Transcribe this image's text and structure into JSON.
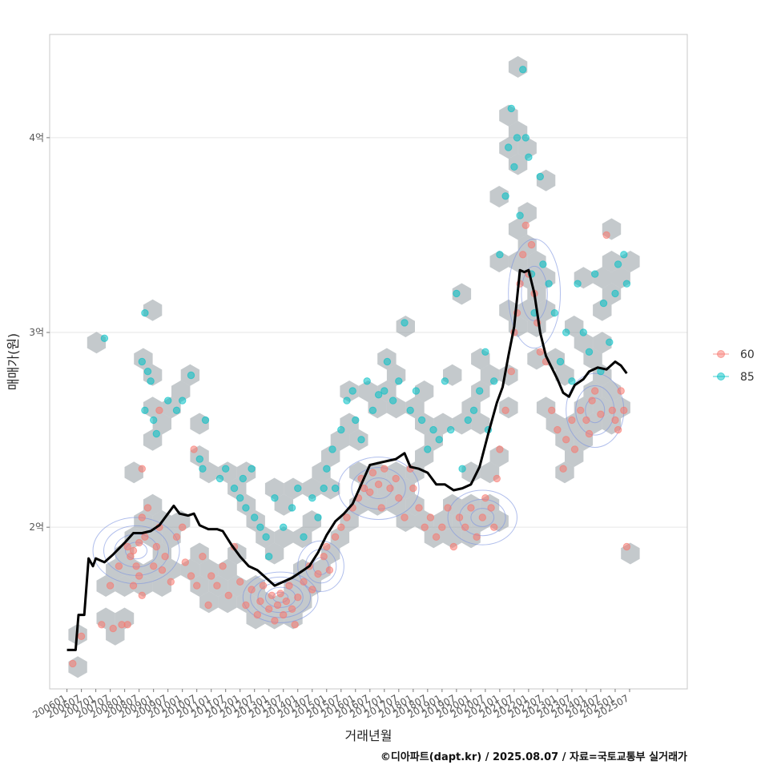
{
  "caption": "©디아파트(dapt.kr) / 2025.08.07 / 자료=국토교통부 실거래가",
  "chart_data": {
    "type": "scatter",
    "xlabel": "거래년월",
    "ylabel": "매매가(원)",
    "x_ticks": [
      "200601",
      "200607",
      "200701",
      "200707",
      "200801",
      "200807",
      "200901",
      "200907",
      "201001",
      "201007",
      "201101",
      "201107",
      "201201",
      "201207",
      "201301",
      "201307",
      "201401",
      "201407",
      "201501",
      "201507",
      "201601",
      "201607",
      "201701",
      "201707",
      "201801",
      "201807",
      "201901",
      "201907",
      "202001",
      "202007",
      "202101",
      "202107",
      "202201",
      "202207",
      "202301",
      "202307",
      "202401",
      "202407",
      "202501",
      "202507"
    ],
    "xlim": [
      2005.4,
      2027.5
    ],
    "y_ticks": [
      {
        "value": 2.0,
        "label": "2억"
      },
      {
        "value": 3.0,
        "label": "3억"
      },
      {
        "value": 4.0,
        "label": "4억"
      }
    ],
    "ylim": [
      1.17,
      4.53
    ],
    "grid": true,
    "legend_position": "right",
    "legend": [
      {
        "name": "60",
        "color": "#F8766D"
      },
      {
        "name": "85",
        "color": "#00BFC4"
      }
    ],
    "hexbin_color": "#8a9399",
    "contour_color": "#7b93e0",
    "trend_color": "#000000",
    "trend_line": [
      [
        2006.0,
        1.37
      ],
      [
        2006.3,
        1.37
      ],
      [
        2006.4,
        1.55
      ],
      [
        2006.6,
        1.55
      ],
      [
        2006.75,
        1.84
      ],
      [
        2006.9,
        1.8
      ],
      [
        2007.0,
        1.84
      ],
      [
        2007.3,
        1.82
      ],
      [
        2007.6,
        1.86
      ],
      [
        2008.0,
        1.92
      ],
      [
        2008.3,
        1.97
      ],
      [
        2008.6,
        1.97
      ],
      [
        2008.9,
        1.98
      ],
      [
        2009.2,
        2.01
      ],
      [
        2009.5,
        2.07
      ],
      [
        2009.7,
        2.11
      ],
      [
        2009.9,
        2.07
      ],
      [
        2010.2,
        2.06
      ],
      [
        2010.4,
        2.07
      ],
      [
        2010.6,
        2.01
      ],
      [
        2010.9,
        1.99
      ],
      [
        2011.2,
        1.99
      ],
      [
        2011.4,
        1.98
      ],
      [
        2011.7,
        1.91
      ],
      [
        2012.0,
        1.85
      ],
      [
        2012.3,
        1.8
      ],
      [
        2012.6,
        1.78
      ],
      [
        2012.9,
        1.74
      ],
      [
        2013.2,
        1.7
      ],
      [
        2013.5,
        1.72
      ],
      [
        2013.8,
        1.74
      ],
      [
        2014.1,
        1.77
      ],
      [
        2014.4,
        1.8
      ],
      [
        2014.7,
        1.87
      ],
      [
        2015.0,
        1.96
      ],
      [
        2015.3,
        2.03
      ],
      [
        2015.6,
        2.07
      ],
      [
        2015.9,
        2.12
      ],
      [
        2016.2,
        2.22
      ],
      [
        2016.5,
        2.32
      ],
      [
        2016.8,
        2.33
      ],
      [
        2017.1,
        2.34
      ],
      [
        2017.4,
        2.35
      ],
      [
        2017.7,
        2.38
      ],
      [
        2017.9,
        2.31
      ],
      [
        2018.2,
        2.3
      ],
      [
        2018.5,
        2.28
      ],
      [
        2018.8,
        2.22
      ],
      [
        2019.1,
        2.22
      ],
      [
        2019.4,
        2.19
      ],
      [
        2019.7,
        2.2
      ],
      [
        2020.0,
        2.22
      ],
      [
        2020.3,
        2.31
      ],
      [
        2020.6,
        2.48
      ],
      [
        2020.9,
        2.64
      ],
      [
        2021.1,
        2.72
      ],
      [
        2021.3,
        2.88
      ],
      [
        2021.5,
        3.03
      ],
      [
        2021.7,
        3.32
      ],
      [
        2021.85,
        3.31
      ],
      [
        2022.0,
        3.32
      ],
      [
        2022.2,
        3.2
      ],
      [
        2022.4,
        3.0
      ],
      [
        2022.6,
        2.88
      ],
      [
        2022.8,
        2.82
      ],
      [
        2023.0,
        2.76
      ],
      [
        2023.2,
        2.69
      ],
      [
        2023.4,
        2.67
      ],
      [
        2023.6,
        2.73
      ],
      [
        2023.9,
        2.76
      ],
      [
        2024.1,
        2.8
      ],
      [
        2024.4,
        2.82
      ],
      [
        2024.7,
        2.81
      ],
      [
        2025.0,
        2.85
      ],
      [
        2025.2,
        2.83
      ],
      [
        2025.4,
        2.79
      ]
    ],
    "series": [
      {
        "name": "60",
        "points": [
          [
            2006.2,
            1.3
          ],
          [
            2006.5,
            1.44
          ],
          [
            2007.2,
            1.5
          ],
          [
            2007.6,
            1.48
          ],
          [
            2007.9,
            1.5
          ],
          [
            2008.1,
            1.5
          ],
          [
            2007.5,
            1.7
          ],
          [
            2007.8,
            1.8
          ],
          [
            2008.1,
            1.9
          ],
          [
            2008.2,
            1.85
          ],
          [
            2008.3,
            1.88
          ],
          [
            2008.4,
            1.8
          ],
          [
            2008.5,
            1.92
          ],
          [
            2008.6,
            2.05
          ],
          [
            2008.7,
            1.95
          ],
          [
            2008.8,
            2.1
          ],
          [
            2008.5,
            1.75
          ],
          [
            2008.3,
            1.7
          ],
          [
            2008.6,
            1.65
          ],
          [
            2009.0,
            1.8
          ],
          [
            2009.1,
            1.9
          ],
          [
            2009.2,
            2.0
          ],
          [
            2009.3,
            1.78
          ],
          [
            2009.4,
            1.85
          ],
          [
            2009.6,
            1.72
          ],
          [
            2009.8,
            1.95
          ],
          [
            2010.0,
            2.0
          ],
          [
            2010.1,
            1.82
          ],
          [
            2010.3,
            1.75
          ],
          [
            2010.5,
            1.7
          ],
          [
            2010.7,
            1.85
          ],
          [
            2010.9,
            1.6
          ],
          [
            2011.0,
            1.75
          ],
          [
            2011.2,
            1.7
          ],
          [
            2011.4,
            1.8
          ],
          [
            2011.6,
            1.65
          ],
          [
            2011.8,
            1.9
          ],
          [
            2012.0,
            1.72
          ],
          [
            2012.2,
            1.6
          ],
          [
            2012.4,
            1.68
          ],
          [
            2012.6,
            1.55
          ],
          [
            2012.7,
            1.62
          ],
          [
            2012.8,
            1.7
          ],
          [
            2013.0,
            1.58
          ],
          [
            2013.1,
            1.65
          ],
          [
            2013.2,
            1.52
          ],
          [
            2013.3,
            1.6
          ],
          [
            2013.4,
            1.66
          ],
          [
            2013.5,
            1.55
          ],
          [
            2013.6,
            1.62
          ],
          [
            2013.7,
            1.7
          ],
          [
            2013.8,
            1.58
          ],
          [
            2013.9,
            1.5
          ],
          [
            2014.0,
            1.64
          ],
          [
            2014.2,
            1.72
          ],
          [
            2014.4,
            1.8
          ],
          [
            2014.5,
            1.68
          ],
          [
            2014.7,
            1.76
          ],
          [
            2014.9,
            1.85
          ],
          [
            2015.0,
            1.9
          ],
          [
            2015.1,
            1.78
          ],
          [
            2015.3,
            1.95
          ],
          [
            2015.5,
            2.0
          ],
          [
            2015.7,
            2.05
          ],
          [
            2015.9,
            2.1
          ],
          [
            2016.1,
            2.15
          ],
          [
            2016.2,
            2.25
          ],
          [
            2016.3,
            2.2
          ],
          [
            2016.5,
            2.18
          ],
          [
            2016.6,
            2.28
          ],
          [
            2016.8,
            2.22
          ],
          [
            2016.9,
            2.1
          ],
          [
            2017.0,
            2.3
          ],
          [
            2017.2,
            2.2
          ],
          [
            2017.4,
            2.25
          ],
          [
            2017.5,
            2.15
          ],
          [
            2017.7,
            2.05
          ],
          [
            2017.9,
            2.3
          ],
          [
            2018.0,
            2.2
          ],
          [
            2018.2,
            2.1
          ],
          [
            2018.4,
            2.0
          ],
          [
            2018.6,
            2.05
          ],
          [
            2018.8,
            1.95
          ],
          [
            2019.0,
            2.0
          ],
          [
            2019.2,
            2.1
          ],
          [
            2019.4,
            1.9
          ],
          [
            2019.6,
            2.05
          ],
          [
            2019.8,
            2.0
          ],
          [
            2020.0,
            2.1
          ],
          [
            2020.2,
            1.95
          ],
          [
            2020.4,
            2.05
          ],
          [
            2020.5,
            2.15
          ],
          [
            2020.7,
            2.1
          ],
          [
            2020.8,
            2.0
          ],
          [
            2020.9,
            2.25
          ],
          [
            2021.0,
            2.4
          ],
          [
            2021.2,
            2.6
          ],
          [
            2021.4,
            2.8
          ],
          [
            2021.5,
            3.0
          ],
          [
            2021.6,
            3.1
          ],
          [
            2021.7,
            3.25
          ],
          [
            2021.8,
            3.4
          ],
          [
            2021.9,
            3.55
          ],
          [
            2022.0,
            3.3
          ],
          [
            2022.1,
            3.45
          ],
          [
            2022.2,
            3.2
          ],
          [
            2022.3,
            3.05
          ],
          [
            2022.4,
            2.9
          ],
          [
            2022.6,
            2.85
          ],
          [
            2022.8,
            2.6
          ],
          [
            2023.0,
            2.5
          ],
          [
            2023.2,
            2.3
          ],
          [
            2023.3,
            2.45
          ],
          [
            2023.5,
            2.55
          ],
          [
            2023.6,
            2.4
          ],
          [
            2023.8,
            2.6
          ],
          [
            2024.0,
            2.55
          ],
          [
            2024.1,
            2.48
          ],
          [
            2024.2,
            2.65
          ],
          [
            2024.3,
            2.7
          ],
          [
            2024.5,
            2.58
          ],
          [
            2024.7,
            3.5
          ],
          [
            2024.9,
            2.6
          ],
          [
            2025.0,
            2.55
          ],
          [
            2025.1,
            2.5
          ],
          [
            2025.2,
            2.7
          ],
          [
            2025.3,
            2.6
          ],
          [
            2025.4,
            1.9
          ],
          [
            2008.6,
            2.3
          ],
          [
            2009.2,
            2.6
          ],
          [
            2010.4,
            2.4
          ]
        ]
      },
      {
        "name": "85",
        "points": [
          [
            2007.3,
            2.97
          ],
          [
            2008.7,
            3.1
          ],
          [
            2008.6,
            2.85
          ],
          [
            2008.8,
            2.8
          ],
          [
            2008.9,
            2.75
          ],
          [
            2008.7,
            2.6
          ],
          [
            2009.0,
            2.55
          ],
          [
            2009.1,
            2.48
          ],
          [
            2009.5,
            2.65
          ],
          [
            2009.8,
            2.6
          ],
          [
            2010.0,
            2.65
          ],
          [
            2010.3,
            2.78
          ],
          [
            2010.8,
            2.55
          ],
          [
            2010.6,
            2.35
          ],
          [
            2010.7,
            2.3
          ],
          [
            2011.3,
            2.25
          ],
          [
            2011.5,
            2.3
          ],
          [
            2011.8,
            2.2
          ],
          [
            2012.0,
            2.15
          ],
          [
            2012.1,
            2.25
          ],
          [
            2012.4,
            2.3
          ],
          [
            2012.2,
            2.1
          ],
          [
            2012.5,
            2.05
          ],
          [
            2012.7,
            2.0
          ],
          [
            2012.9,
            1.95
          ],
          [
            2013.0,
            1.85
          ],
          [
            2013.2,
            2.15
          ],
          [
            2013.5,
            2.0
          ],
          [
            2013.8,
            2.1
          ],
          [
            2014.0,
            2.2
          ],
          [
            2014.2,
            1.95
          ],
          [
            2014.5,
            2.15
          ],
          [
            2014.7,
            2.05
          ],
          [
            2014.9,
            2.2
          ],
          [
            2015.0,
            2.3
          ],
          [
            2015.2,
            2.4
          ],
          [
            2015.3,
            2.2
          ],
          [
            2015.5,
            2.5
          ],
          [
            2015.7,
            2.65
          ],
          [
            2015.9,
            2.7
          ],
          [
            2016.0,
            2.55
          ],
          [
            2016.2,
            2.45
          ],
          [
            2016.4,
            2.75
          ],
          [
            2016.6,
            2.6
          ],
          [
            2016.8,
            2.68
          ],
          [
            2017.0,
            2.7
          ],
          [
            2017.1,
            2.85
          ],
          [
            2017.3,
            2.65
          ],
          [
            2017.5,
            2.75
          ],
          [
            2017.7,
            3.05
          ],
          [
            2017.9,
            2.6
          ],
          [
            2018.1,
            2.7
          ],
          [
            2018.3,
            2.55
          ],
          [
            2018.5,
            2.4
          ],
          [
            2018.7,
            2.5
          ],
          [
            2018.9,
            2.45
          ],
          [
            2019.1,
            2.75
          ],
          [
            2019.3,
            2.5
          ],
          [
            2019.5,
            3.2
          ],
          [
            2019.7,
            2.3
          ],
          [
            2019.9,
            2.55
          ],
          [
            2020.1,
            2.6
          ],
          [
            2020.3,
            2.7
          ],
          [
            2020.5,
            2.9
          ],
          [
            2020.6,
            2.5
          ],
          [
            2020.8,
            2.75
          ],
          [
            2021.0,
            3.4
          ],
          [
            2021.2,
            3.7
          ],
          [
            2021.3,
            3.95
          ],
          [
            2021.4,
            4.15
          ],
          [
            2021.5,
            3.85
          ],
          [
            2021.6,
            4.0
          ],
          [
            2021.7,
            3.6
          ],
          [
            2021.8,
            4.35
          ],
          [
            2021.9,
            4.0
          ],
          [
            2022.0,
            3.9
          ],
          [
            2022.1,
            3.3
          ],
          [
            2022.2,
            3.1
          ],
          [
            2022.4,
            3.8
          ],
          [
            2022.5,
            3.35
          ],
          [
            2022.7,
            3.25
          ],
          [
            2022.9,
            3.1
          ],
          [
            2023.1,
            2.85
          ],
          [
            2023.3,
            3.0
          ],
          [
            2023.5,
            2.75
          ],
          [
            2023.7,
            3.25
          ],
          [
            2023.9,
            3.0
          ],
          [
            2024.1,
            2.9
          ],
          [
            2024.3,
            3.3
          ],
          [
            2024.5,
            2.8
          ],
          [
            2024.6,
            3.15
          ],
          [
            2024.8,
            2.95
          ],
          [
            2025.0,
            3.2
          ],
          [
            2025.1,
            3.35
          ],
          [
            2025.3,
            3.4
          ],
          [
            2025.4,
            3.25
          ]
        ]
      }
    ]
  }
}
